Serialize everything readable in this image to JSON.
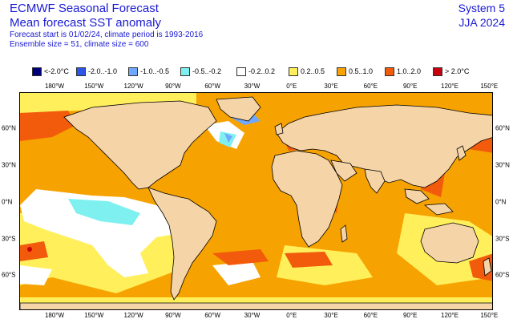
{
  "header": {
    "title": "ECMWF Seasonal Forecast",
    "subtitle": "Mean forecast SST anomaly",
    "info_line1": "Forecast start is 01/02/24, climate period is 1993-2016",
    "info_line2": "Ensemble size = 51, climate size = 600",
    "system": "System 5",
    "season": "JJA 2024"
  },
  "legend": [
    {
      "label": "<-2.0°C",
      "color": "#00007a"
    },
    {
      "label": "-2.0..-1.0",
      "color": "#2e56e6"
    },
    {
      "label": "-1.0..-0.5",
      "color": "#6ea8ff"
    },
    {
      "label": "-0.5..-0.2",
      "color": "#7ff0f0"
    },
    {
      "label": "-0.2..0.2",
      "color": "#ffffff"
    },
    {
      "label": "0.2..0.5",
      "color": "#ffef5a"
    },
    {
      "label": "0.5..1.0",
      "color": "#f6a200"
    },
    {
      "label": "1.0..2.0",
      "color": "#f25a0c"
    },
    {
      "label": "> 2.0°C",
      "color": "#c8000e"
    }
  ],
  "axes": {
    "x_ticks": [
      "180°W",
      "150°W",
      "120°W",
      "90°W",
      "60°W",
      "30°W",
      "0°E",
      "30°E",
      "60°E",
      "90°E",
      "120°E",
      "150°E"
    ],
    "y_ticks_left": [
      "60°N",
      "30°N",
      "0°N",
      "30°S",
      "60°S"
    ],
    "y_ticks_right": [
      "60°N",
      "30°N",
      "0°N",
      "30°S",
      "60°S"
    ]
  },
  "colors": {
    "land": "#f5d4a8",
    "text_blue": "#1a1ad4"
  }
}
